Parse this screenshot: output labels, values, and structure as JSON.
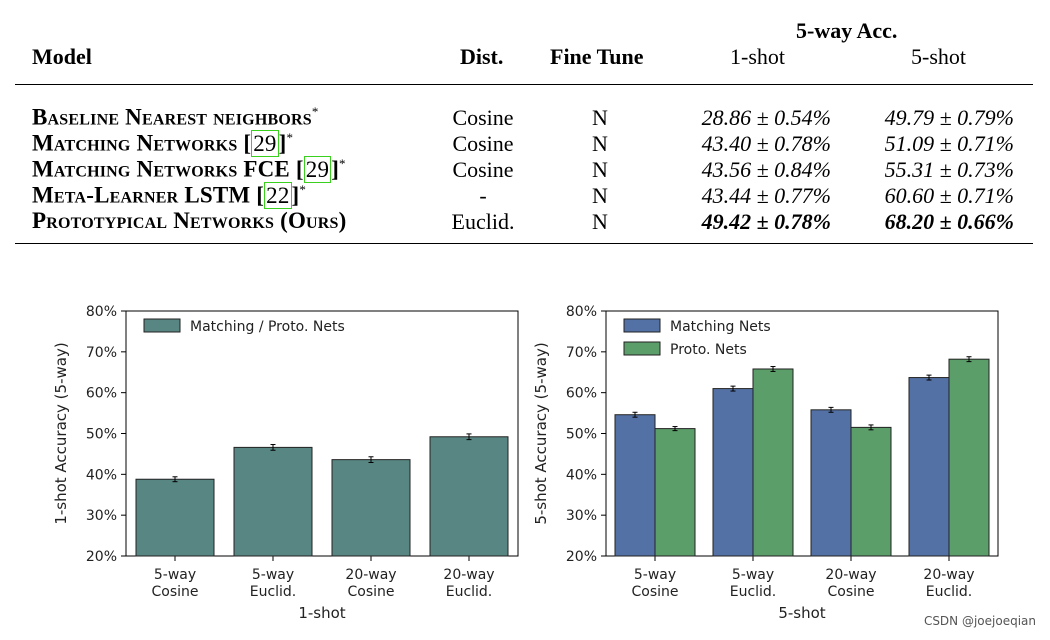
{
  "table": {
    "headers": {
      "model": "Model",
      "dist": "Dist.",
      "fine_tune": "Fine Tune",
      "group": "5-way Acc.",
      "one_shot": "1-shot",
      "five_shot": "5-shot"
    },
    "rows": [
      {
        "model": "Baseline Nearest neighbors",
        "cite": "",
        "star": "*",
        "dist": "Cosine",
        "fine_tune": "N",
        "one_shot": "28.86 ± 0.54%",
        "five_shot": "49.79 ± 0.79%",
        "bold": false
      },
      {
        "model": "Matching Networks ",
        "cite": "29",
        "star": "*",
        "dist": "Cosine",
        "fine_tune": "N",
        "one_shot": "43.40 ± 0.78%",
        "five_shot": "51.09 ± 0.71%",
        "bold": false
      },
      {
        "model": "Matching Networks FCE ",
        "cite": "29",
        "star": "*",
        "dist": "Cosine",
        "fine_tune": "N",
        "one_shot": "43.56 ± 0.84%",
        "five_shot": "55.31 ± 0.73%",
        "bold": false
      },
      {
        "model": "Meta-Learner LSTM ",
        "cite": "22",
        "star": "*",
        "dist": "-",
        "fine_tune": "N",
        "one_shot": "43.44 ± 0.77%",
        "five_shot": "60.60 ± 0.71%",
        "bold": false
      },
      {
        "model": "Prototypical Networks (Ours)",
        "cite": "",
        "star": "",
        "dist": "Euclid.",
        "fine_tune": "N",
        "one_shot": "49.42 ± 0.78%",
        "five_shot": "68.20 ± 0.66%",
        "bold": true
      }
    ]
  },
  "chart_data": [
    {
      "type": "bar",
      "categories": [
        "5-way\nCosine",
        "5-way\nEuclid.",
        "20-way\nCosine",
        "20-way\nEuclid."
      ],
      "series": [
        {
          "name": "Matching / Proto. Nets",
          "values": [
            38.8,
            46.6,
            43.6,
            49.2
          ],
          "errors": [
            0.6,
            0.7,
            0.7,
            0.7
          ],
          "color": "#588682"
        }
      ],
      "xlabel": "1-shot",
      "ylabel": "1-shot Accuracy (5-way)",
      "ylim": [
        20,
        80
      ],
      "yticks": [
        "20%",
        "30%",
        "40%",
        "50%",
        "60%",
        "70%",
        "80%"
      ],
      "legend": "top-left",
      "grid": false
    },
    {
      "type": "bar",
      "categories": [
        "5-way\nCosine",
        "5-way\nEuclid.",
        "20-way\nCosine",
        "20-way\nEuclid."
      ],
      "series": [
        {
          "name": "Matching Nets",
          "values": [
            54.6,
            61.0,
            55.8,
            63.7
          ],
          "errors": [
            0.6,
            0.6,
            0.6,
            0.6
          ],
          "color": "#5471a5"
        },
        {
          "name": "Proto. Nets",
          "values": [
            51.2,
            65.8,
            51.5,
            68.2
          ],
          "errors": [
            0.5,
            0.6,
            0.6,
            0.6
          ],
          "color": "#5c9e6a"
        }
      ],
      "xlabel": "5-shot",
      "ylabel": "5-shot Accuracy (5-way)",
      "ylim": [
        20,
        80
      ],
      "yticks": [
        "20%",
        "30%",
        "40%",
        "50%",
        "60%",
        "70%",
        "80%"
      ],
      "legend": "top-left",
      "grid": false
    }
  ],
  "watermark": "CSDN @joejoeqian"
}
